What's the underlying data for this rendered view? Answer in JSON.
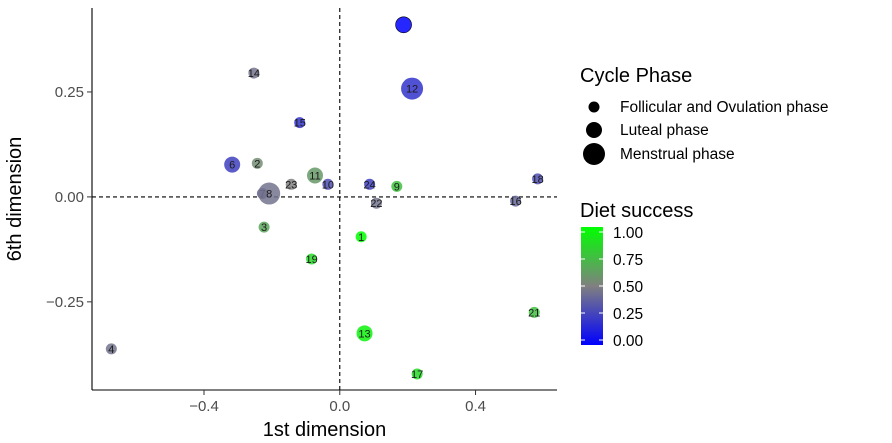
{
  "chart_data": {
    "type": "scatter",
    "title": "",
    "xlabel": "1st dimension",
    "ylabel": "6th dimension",
    "xlim": [
      -0.73,
      0.64
    ],
    "ylim": [
      -0.46,
      0.45
    ],
    "x_ticks": [
      -0.4,
      0.0,
      0.4
    ],
    "x_tick_labels": [
      "−0.4",
      "0.0",
      "0.4"
    ],
    "y_ticks": [
      -0.25,
      0.0,
      0.25
    ],
    "y_tick_labels": [
      "−0.25",
      "0.00",
      "0.25"
    ],
    "reference_lines": {
      "x": 0,
      "y": 0,
      "style": "dashed"
    },
    "grid": false,
    "size_legend": {
      "title": "Cycle Phase",
      "entries": [
        {
          "label": "Follicular and Ovulation phase",
          "size": 1
        },
        {
          "label": "Luteal phase",
          "size": 2
        },
        {
          "label": "Menstrual phase",
          "size": 3
        }
      ]
    },
    "color_legend": {
      "title": "Diet success",
      "scale": {
        "low": "#0000ff",
        "mid": "#808080",
        "high": "#00ff00"
      },
      "ticks": [
        0.0,
        0.25,
        0.5,
        0.75,
        1.0
      ],
      "tick_labels": [
        "0.00",
        "0.25",
        "0.50",
        "0.75",
        "1.00"
      ]
    },
    "points": [
      {
        "id": "1",
        "x": 0.063,
        "y": -0.095,
        "phase": 1,
        "success": 1.0
      },
      {
        "id": "2",
        "x": -0.243,
        "y": 0.08,
        "phase": 1,
        "success": 0.55
      },
      {
        "id": "3",
        "x": -0.223,
        "y": -0.072,
        "phase": 1,
        "success": 0.65
      },
      {
        "id": "4",
        "x": -0.673,
        "y": -0.362,
        "phase": 1,
        "success": 0.45
      },
      {
        "id": "6",
        "x": -0.317,
        "y": 0.077,
        "phase": 2,
        "success": 0.25
      },
      {
        "id": "7",
        "x": -0.228,
        "y": 0.008,
        "phase": 1,
        "success": 0.4
      },
      {
        "id": "8",
        "x": -0.208,
        "y": 0.008,
        "phase": 3,
        "success": 0.45
      },
      {
        "id": "9",
        "x": 0.168,
        "y": 0.025,
        "phase": 1,
        "success": 0.75
      },
      {
        "id": "10",
        "x": -0.035,
        "y": 0.03,
        "phase": 1,
        "success": 0.3
      },
      {
        "id": "11",
        "x": -0.073,
        "y": 0.051,
        "phase": 2,
        "success": 0.6
      },
      {
        "id": "12",
        "x": 0.213,
        "y": 0.258,
        "phase": 3,
        "success": 0.2
      },
      {
        "id": "13",
        "x": 0.073,
        "y": -0.325,
        "phase": 2,
        "success": 0.95
      },
      {
        "id": "14",
        "x": -0.253,
        "y": 0.295,
        "phase": 1,
        "success": 0.45
      },
      {
        "id": "15",
        "x": -0.118,
        "y": 0.177,
        "phase": 1,
        "success": 0.2
      },
      {
        "id": "16",
        "x": 0.518,
        "y": -0.01,
        "phase": 1,
        "success": 0.4
      },
      {
        "id": "17",
        "x": 0.228,
        "y": -0.422,
        "phase": 1,
        "success": 0.85
      },
      {
        "id": "18",
        "x": 0.583,
        "y": 0.043,
        "phase": 1,
        "success": 0.3
      },
      {
        "id": "19",
        "x": -0.083,
        "y": -0.148,
        "phase": 1,
        "success": 0.85
      },
      {
        "id": "21",
        "x": 0.573,
        "y": -0.275,
        "phase": 1,
        "success": 0.75
      },
      {
        "id": "22",
        "x": 0.108,
        "y": -0.015,
        "phase": 1,
        "success": 0.45
      },
      {
        "id": "23",
        "x": -0.143,
        "y": 0.03,
        "phase": 1,
        "success": 0.5
      },
      {
        "id": "24",
        "x": 0.088,
        "y": 0.03,
        "phase": 1,
        "success": 0.25
      },
      {
        "id": "",
        "x": 0.188,
        "y": 0.41,
        "phase": 2,
        "success": 0.0
      }
    ]
  }
}
